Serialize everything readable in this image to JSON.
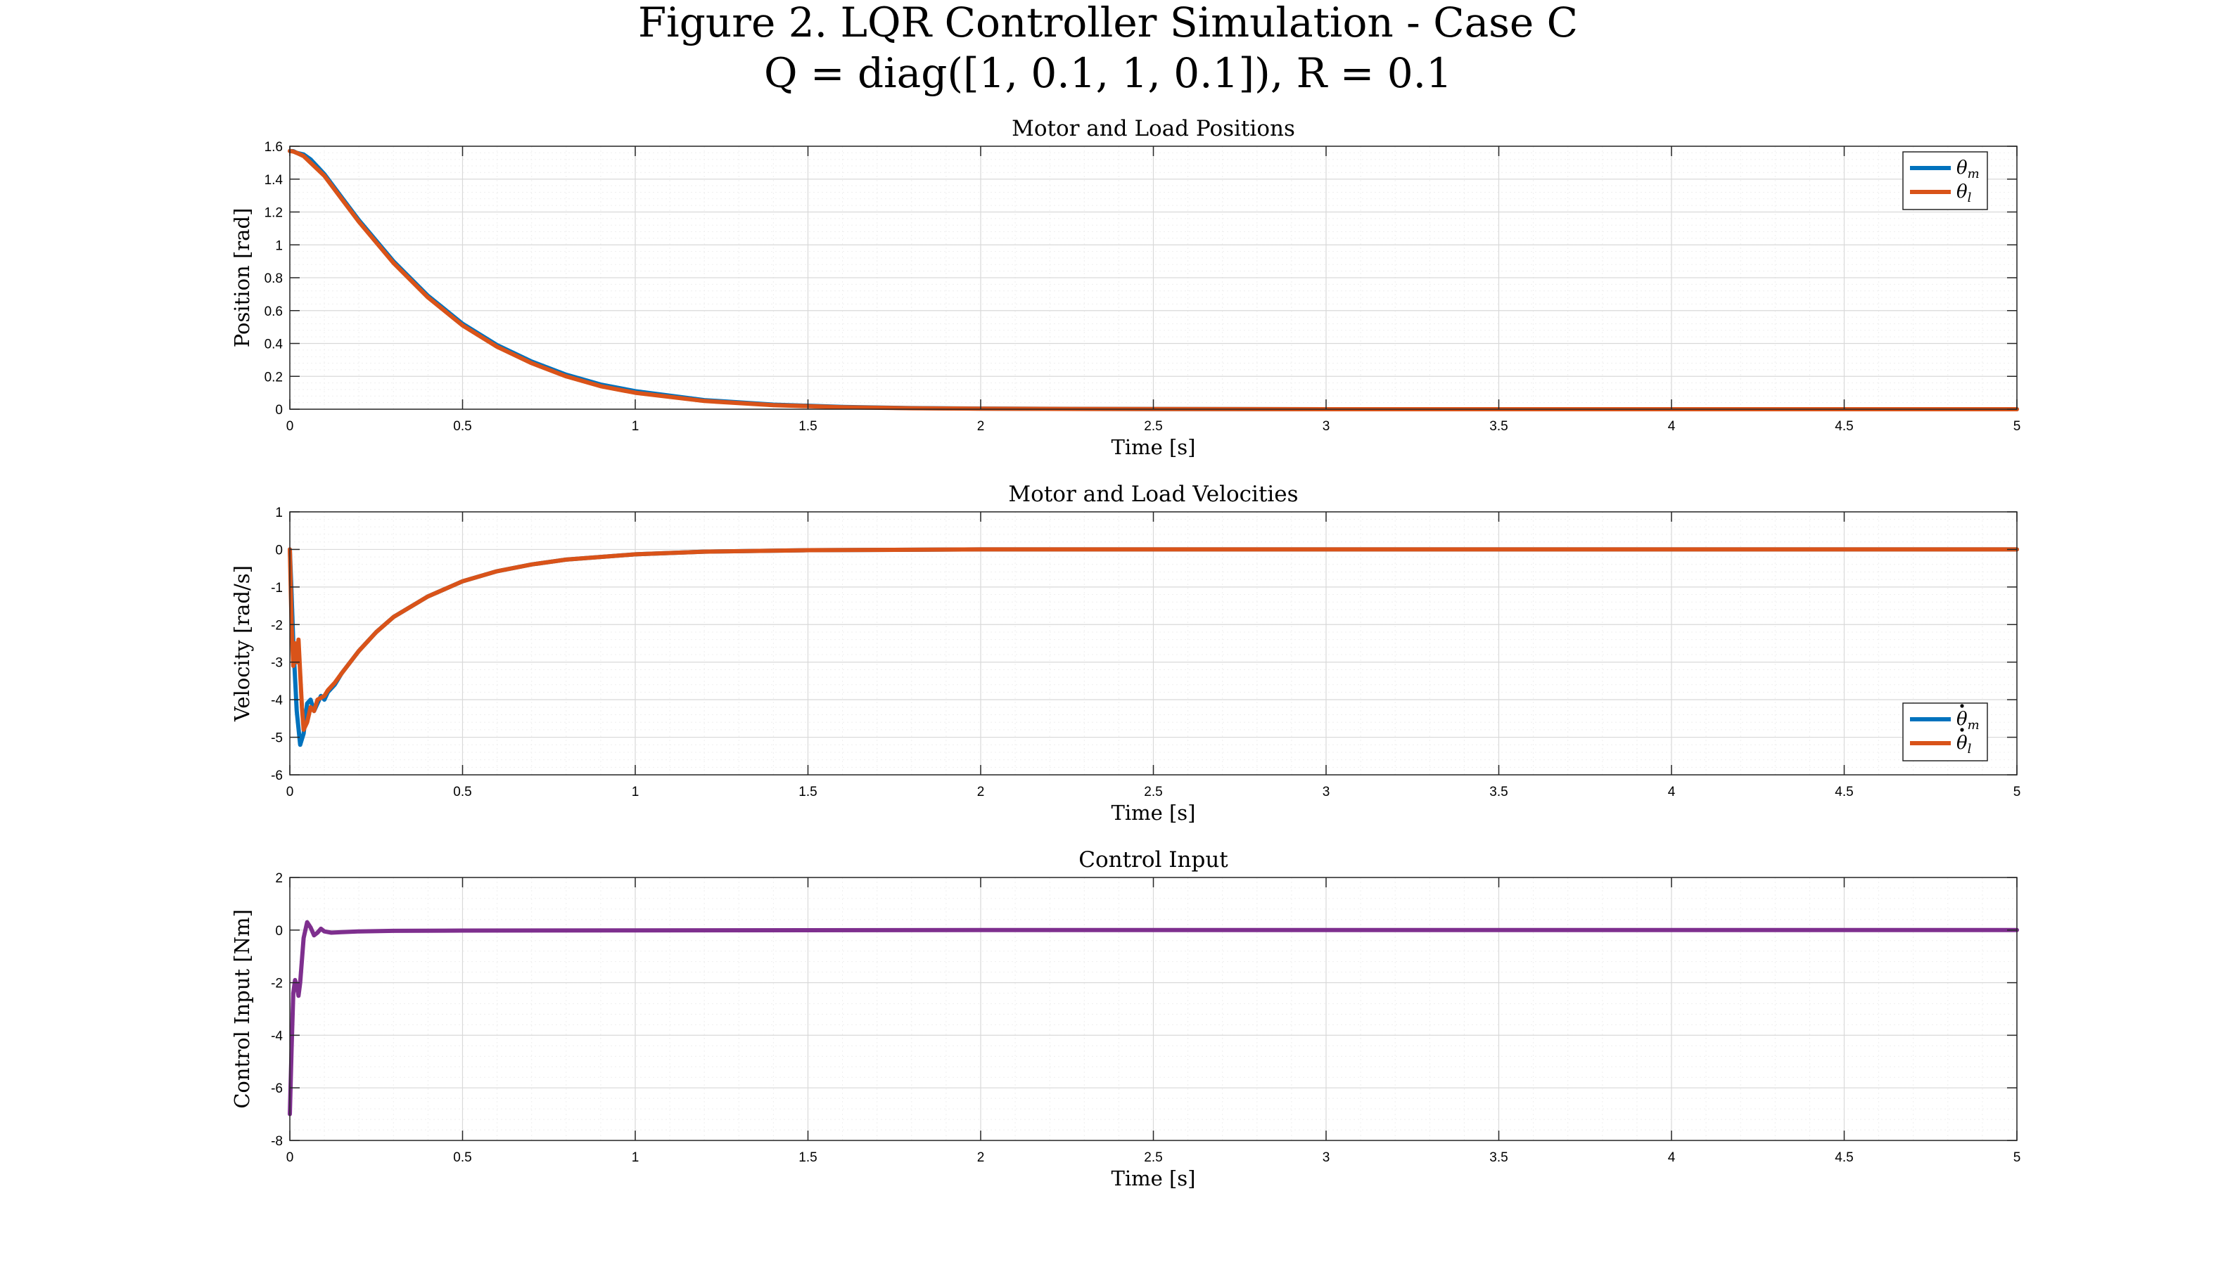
{
  "figure": {
    "title_line1": "Figure 2. LQR Controller Simulation - Case C",
    "title_line2": "Q = diag([1, 0.1, 1, 0.1]), R = 0.1"
  },
  "chart_data": [
    {
      "type": "line",
      "title": "Motor and Load Positions",
      "xlabel": "Time [s]",
      "ylabel": "Position [rad]",
      "xlim": [
        0,
        5
      ],
      "ylim": [
        0,
        1.6
      ],
      "xticks": [
        0,
        0.5,
        1,
        1.5,
        2,
        2.5,
        3,
        3.5,
        4,
        4.5,
        5
      ],
      "yticks": [
        0,
        0.2,
        0.4,
        0.6,
        0.8,
        1,
        1.2,
        1.4,
        1.6
      ],
      "grid": true,
      "legend_position": "top-right",
      "legend": [
        {
          "base": "θ",
          "sub": "m",
          "dot": false,
          "color": "#0072BD"
        },
        {
          "base": "θ",
          "sub": "l",
          "dot": false,
          "color": "#D95319"
        }
      ],
      "series": [
        {
          "color": "#0072BD",
          "x": [
            0,
            0.01,
            0.02,
            0.04,
            0.06,
            0.1,
            0.15,
            0.2,
            0.3,
            0.4,
            0.5,
            0.6,
            0.7,
            0.8,
            0.9,
            1.0,
            1.2,
            1.4,
            1.6,
            1.8,
            2.0,
            2.5,
            3.0,
            3.5,
            4.0,
            4.5,
            5.0
          ],
          "y": [
            1.5708,
            1.57,
            1.56,
            1.55,
            1.52,
            1.43,
            1.29,
            1.15,
            0.9,
            0.69,
            0.52,
            0.39,
            0.29,
            0.21,
            0.15,
            0.11,
            0.055,
            0.028,
            0.014,
            0.007,
            0.004,
            0.001,
            0,
            0,
            0,
            0,
            0
          ]
        },
        {
          "color": "#D95319",
          "x": [
            0,
            0.01,
            0.02,
            0.04,
            0.06,
            0.1,
            0.15,
            0.2,
            0.3,
            0.4,
            0.5,
            0.6,
            0.7,
            0.8,
            0.9,
            1.0,
            1.2,
            1.4,
            1.6,
            1.8,
            2.0,
            2.5,
            3.0,
            3.5,
            4.0,
            4.5,
            5.0
          ],
          "y": [
            1.5708,
            1.568,
            1.56,
            1.54,
            1.5,
            1.42,
            1.28,
            1.14,
            0.89,
            0.68,
            0.51,
            0.38,
            0.28,
            0.2,
            0.14,
            0.1,
            0.05,
            0.025,
            0.012,
            0.006,
            0.003,
            0.001,
            0,
            0,
            0,
            0,
            0
          ]
        }
      ]
    },
    {
      "type": "line",
      "title": "Motor and Load Velocities",
      "xlabel": "Time [s]",
      "ylabel": "Velocity [rad/s]",
      "xlim": [
        0,
        5
      ],
      "ylim": [
        -6,
        1
      ],
      "xticks": [
        0,
        0.5,
        1,
        1.5,
        2,
        2.5,
        3,
        3.5,
        4,
        4.5,
        5
      ],
      "yticks": [
        -6,
        -5,
        -4,
        -3,
        -2,
        -1,
        0,
        1
      ],
      "grid": true,
      "legend_position": "bottom-right",
      "legend": [
        {
          "base": "θ",
          "sub": "m",
          "dot": true,
          "color": "#0072BD"
        },
        {
          "base": "θ",
          "sub": "l",
          "dot": true,
          "color": "#D95319"
        }
      ],
      "series": [
        {
          "color": "#0072BD",
          "x": [
            0,
            0.005,
            0.01,
            0.02,
            0.03,
            0.04,
            0.05,
            0.06,
            0.07,
            0.08,
            0.09,
            0.1,
            0.11,
            0.12,
            0.13,
            0.15,
            0.2,
            0.25,
            0.3,
            0.4,
            0.5,
            0.6,
            0.7,
            0.8,
            1.0,
            1.2,
            1.5,
            2.0,
            2.5,
            3.0,
            4.0,
            5.0
          ],
          "y": [
            0,
            -1.2,
            -2.5,
            -4.3,
            -5.2,
            -4.9,
            -4.1,
            -4.0,
            -4.3,
            -4.1,
            -3.9,
            -4.0,
            -3.8,
            -3.7,
            -3.6,
            -3.3,
            -2.7,
            -2.2,
            -1.8,
            -1.25,
            -0.85,
            -0.58,
            -0.4,
            -0.27,
            -0.13,
            -0.06,
            -0.02,
            0,
            0,
            0,
            0,
            0
          ]
        },
        {
          "color": "#D95319",
          "x": [
            0,
            0.005,
            0.01,
            0.015,
            0.02,
            0.025,
            0.03,
            0.035,
            0.04,
            0.05,
            0.06,
            0.07,
            0.08,
            0.09,
            0.1,
            0.11,
            0.12,
            0.13,
            0.15,
            0.2,
            0.25,
            0.3,
            0.4,
            0.5,
            0.6,
            0.7,
            0.8,
            1.0,
            1.2,
            1.5,
            2.0,
            2.5,
            3.0,
            4.0,
            5.0
          ],
          "y": [
            0,
            -2.0,
            -3.1,
            -2.5,
            -3.0,
            -2.4,
            -3.3,
            -4.2,
            -4.8,
            -4.6,
            -4.2,
            -4.3,
            -4.0,
            -3.95,
            -3.9,
            -3.75,
            -3.65,
            -3.55,
            -3.3,
            -2.7,
            -2.2,
            -1.8,
            -1.25,
            -0.85,
            -0.58,
            -0.4,
            -0.27,
            -0.13,
            -0.06,
            -0.02,
            0,
            0,
            0,
            0,
            0
          ]
        }
      ]
    },
    {
      "type": "line",
      "title": "Control Input",
      "xlabel": "Time [s]",
      "ylabel": "Control Input [Nm]",
      "xlim": [
        0,
        5
      ],
      "ylim": [
        -8,
        2
      ],
      "xticks": [
        0,
        0.5,
        1,
        1.5,
        2,
        2.5,
        3,
        3.5,
        4,
        4.5,
        5
      ],
      "yticks": [
        -8,
        -6,
        -4,
        -2,
        0,
        2
      ],
      "grid": true,
      "series": [
        {
          "color": "#7E2F8E",
          "x": [
            0,
            0.005,
            0.01,
            0.015,
            0.02,
            0.025,
            0.03,
            0.04,
            0.05,
            0.06,
            0.07,
            0.08,
            0.09,
            0.1,
            0.12,
            0.15,
            0.2,
            0.3,
            0.5,
            1.0,
            2.0,
            3.0,
            4.0,
            5.0
          ],
          "y": [
            -7.0,
            -4.5,
            -2.4,
            -1.9,
            -2.1,
            -2.5,
            -2.0,
            -0.3,
            0.3,
            0.1,
            -0.2,
            -0.1,
            0.05,
            -0.05,
            -0.1,
            -0.08,
            -0.05,
            -0.03,
            -0.02,
            -0.01,
            0,
            0,
            0,
            0
          ]
        }
      ]
    }
  ]
}
